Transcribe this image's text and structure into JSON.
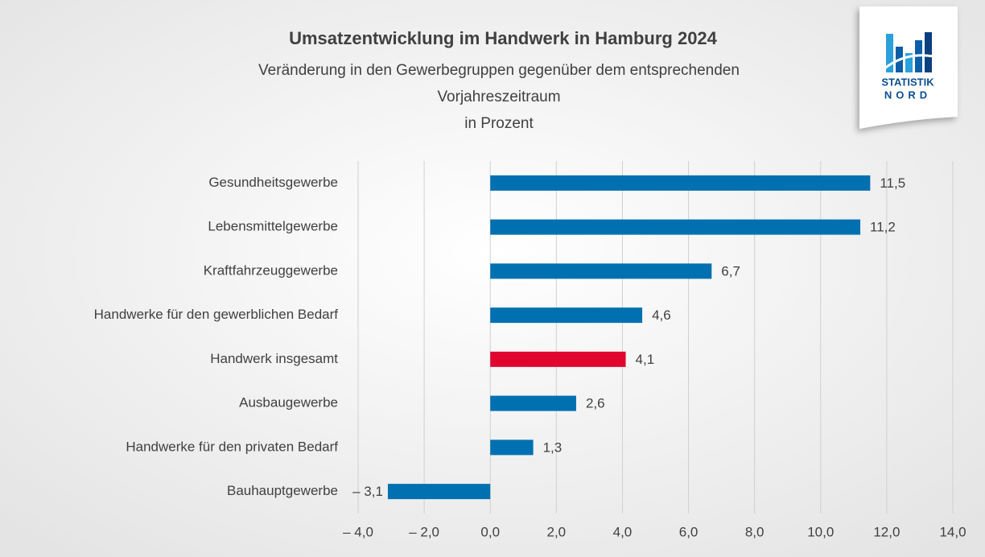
{
  "chart_data": {
    "type": "bar",
    "orientation": "horizontal",
    "title": "Umsatzentwicklung im Handwerk in Hamburg 2024",
    "subtitle": [
      "Veränderung in den Gewerbegruppen gegenüber dem entsprechenden",
      "Vorjahreszeitraum",
      "in Prozent"
    ],
    "categories": [
      "Gesundheitsgewerbe",
      "Lebensmittelgewerbe",
      "Kraftfahrzeuggewerbe",
      "Handwerke für den gewerblichen Bedarf",
      "Handwerk insgesamt",
      "Ausbaugewerbe",
      "Handwerke für den privaten Bedarf",
      "Bauhauptgewerbe"
    ],
    "values": [
      11.5,
      11.2,
      6.7,
      4.6,
      4.1,
      2.6,
      1.3,
      -3.1
    ],
    "value_labels": [
      "11,5",
      "11,2",
      "6,7",
      "4,6",
      "4,1",
      "2,6",
      "1,3",
      "– 3,1"
    ],
    "colors": [
      "#0070b0",
      "#0070b0",
      "#0070b0",
      "#0070b0",
      "#e0062f",
      "#0070b0",
      "#0070b0",
      "#0070b0"
    ],
    "xlim": [
      -4,
      14
    ],
    "xticks": [
      {
        "value": -4,
        "label": "– 4,0"
      },
      {
        "value": -2,
        "label": "– 2,0"
      },
      {
        "value": 0,
        "label": "0,0"
      },
      {
        "value": 2,
        "label": "2,0"
      },
      {
        "value": 4,
        "label": "4,0"
      },
      {
        "value": 6,
        "label": "6,0"
      },
      {
        "value": 8,
        "label": "8,0"
      },
      {
        "value": 10,
        "label": "10,0"
      },
      {
        "value": 12,
        "label": "12,0"
      },
      {
        "value": 14,
        "label": "14,0"
      }
    ],
    "grid": true,
    "logo": {
      "line1": "STATISTIK",
      "line2": "NORD"
    }
  }
}
